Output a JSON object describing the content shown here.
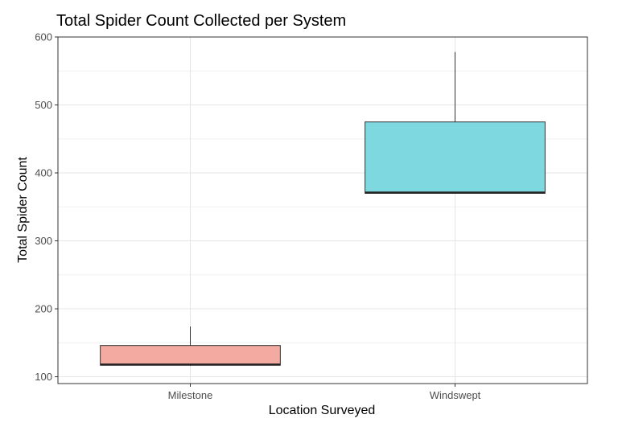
{
  "chart_data": {
    "type": "boxplot",
    "title": "Total Spider Count Collected per System",
    "xlabel": "Location Surveyed",
    "ylabel": "Total Spider Count",
    "ylim": [
      90,
      600
    ],
    "yticks": [
      100,
      200,
      300,
      400,
      500,
      600
    ],
    "grid": true,
    "categories": [
      "Milestone",
      "Windswept"
    ],
    "boxes": [
      {
        "category": "Milestone",
        "min": 116,
        "q1": 117,
        "median": 118,
        "q3": 146,
        "max": 174,
        "color": "#f3aaa0"
      },
      {
        "category": "Windswept",
        "min": 370,
        "q1": 370,
        "median": 371,
        "q3": 475,
        "max": 578,
        "color": "#7dd8e0"
      }
    ]
  }
}
